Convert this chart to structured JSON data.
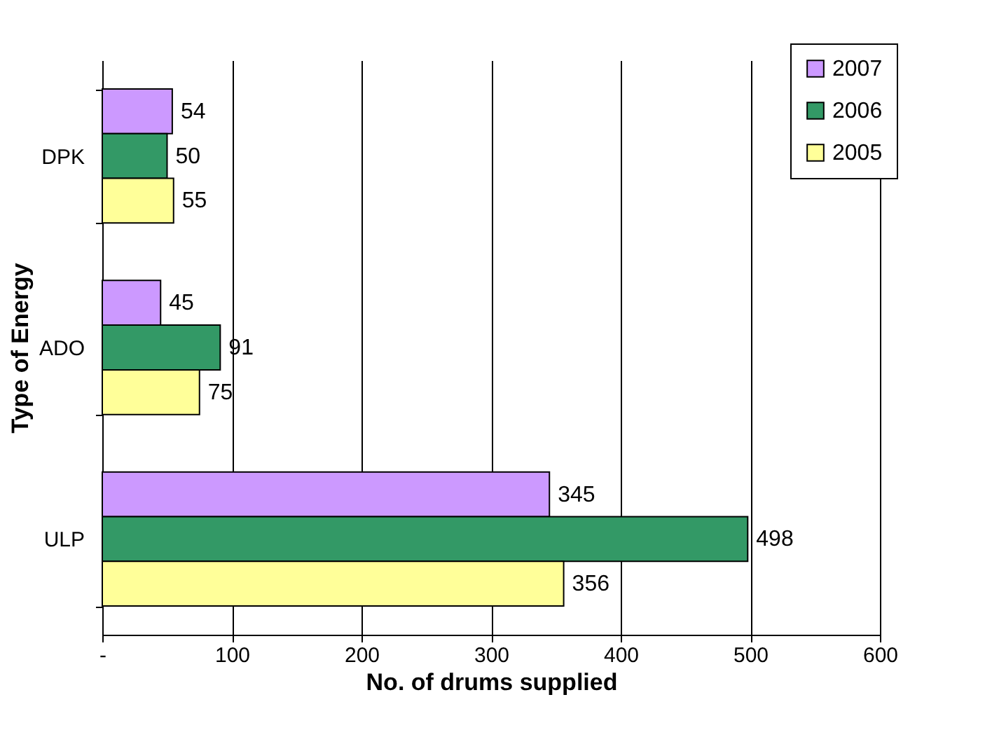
{
  "chart_data": {
    "type": "bar",
    "orientation": "horizontal",
    "xlabel": "No. of drums supplied",
    "ylabel": "Type of Energy",
    "categories": [
      "DPK",
      "ADO",
      "ULP"
    ],
    "series": [
      {
        "name": "2007",
        "color": "#cc99ff",
        "values": [
          54,
          45,
          345
        ]
      },
      {
        "name": "2006",
        "color": "#339966",
        "values": [
          50,
          91,
          498
        ]
      },
      {
        "name": "2005",
        "color": "#ffff99",
        "values": [
          55,
          75,
          356
        ]
      }
    ],
    "xlim": [
      0,
      600
    ],
    "xticks": [
      {
        "value": 0,
        "label": "-"
      },
      100,
      200,
      300,
      400,
      500,
      600
    ],
    "grid": "x",
    "legend": "top right",
    "data_labels": true
  }
}
